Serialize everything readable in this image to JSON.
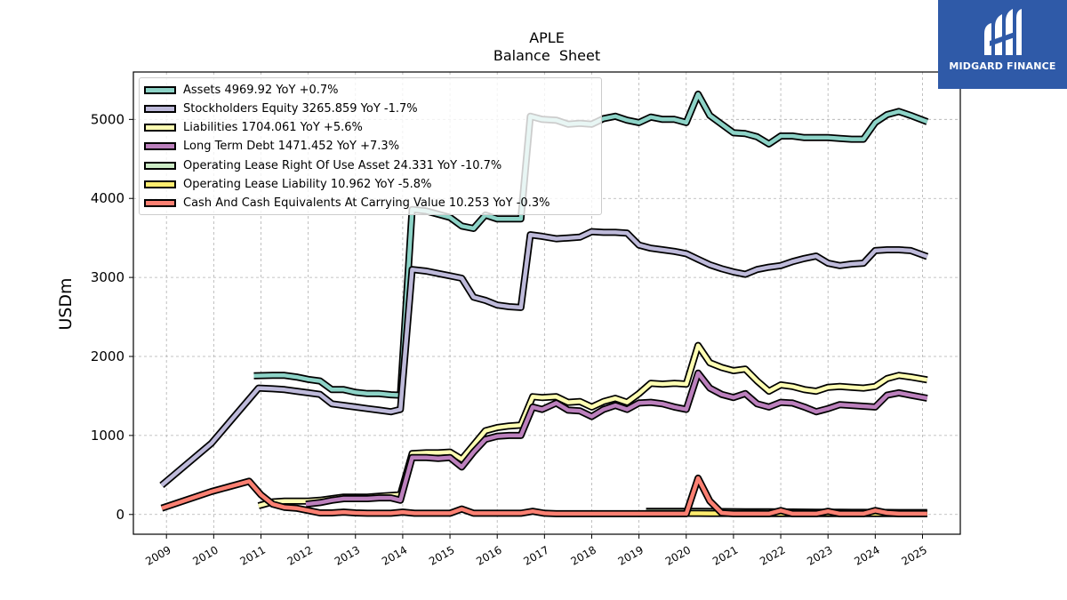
{
  "brand": {
    "name": "MIDGARD FINANCE",
    "logo_color": "#2f5aa8"
  },
  "chart_data": {
    "type": "line",
    "title": "APLE",
    "subtitle": "Balance  Sheet",
    "ylabel": "USDm",
    "xlabel": "",
    "ylim": [
      -250,
      5600
    ],
    "xlim": [
      2008.3,
      2025.8
    ],
    "yticks": [
      0,
      1000,
      2000,
      3000,
      4000,
      5000
    ],
    "xticks": [
      2009,
      2010,
      2011,
      2012,
      2013,
      2014,
      2015,
      2016,
      2017,
      2018,
      2019,
      2020,
      2021,
      2022,
      2023,
      2024,
      2025
    ],
    "grid": true,
    "legend_position": "upper-left",
    "series": [
      {
        "name": "Assets",
        "legend": "Assets  4969.92 YoY +0.7%",
        "color": "#8dd3c7",
        "x": [
          2010.85,
          2011.25,
          2011.5,
          2011.75,
          2012.0,
          2012.25,
          2012.5,
          2012.75,
          2013.0,
          2013.25,
          2013.5,
          2013.75,
          2013.95,
          2014.2,
          2014.5,
          2014.75,
          2015.0,
          2015.25,
          2015.5,
          2015.75,
          2016.0,
          2016.25,
          2016.5,
          2016.7,
          2016.95,
          2017.25,
          2017.5,
          2017.75,
          2018.0,
          2018.25,
          2018.5,
          2018.75,
          2019.0,
          2019.25,
          2019.5,
          2019.75,
          2020.0,
          2020.25,
          2020.5,
          2020.75,
          2021.0,
          2021.25,
          2021.5,
          2021.75,
          2022.0,
          2022.25,
          2022.5,
          2022.75,
          2023.0,
          2023.25,
          2023.5,
          2023.75,
          2024.0,
          2024.25,
          2024.5,
          2024.75,
          2025.1
        ],
        "y": [
          1755,
          1760,
          1760,
          1740,
          1710,
          1690,
          1580,
          1580,
          1545,
          1530,
          1530,
          1515,
          1510,
          3860,
          3840,
          3800,
          3760,
          3650,
          3620,
          3790,
          3740,
          3740,
          3740,
          5040,
          5000,
          4990,
          4940,
          4950,
          4940,
          5010,
          5040,
          4990,
          4960,
          5030,
          5000,
          5000,
          4960,
          5320,
          5050,
          4940,
          4830,
          4820,
          4780,
          4690,
          4790,
          4790,
          4770,
          4770,
          4770,
          4760,
          4750,
          4750,
          4960,
          5060,
          5100,
          5050,
          4970
        ]
      },
      {
        "name": "Stockholders Equity",
        "legend": "Stockholders Equity  3265.859 YoY -1.7%",
        "color": "#bebada",
        "x": [
          2008.9,
          2009.95,
          2010.95,
          2011.25,
          2011.5,
          2011.75,
          2012.0,
          2012.25,
          2012.5,
          2012.75,
          2013.0,
          2013.25,
          2013.5,
          2013.75,
          2013.95,
          2014.2,
          2014.5,
          2014.75,
          2015.0,
          2015.25,
          2015.5,
          2015.75,
          2016.0,
          2016.25,
          2016.5,
          2016.7,
          2016.95,
          2017.25,
          2017.5,
          2017.75,
          2018.0,
          2018.25,
          2018.5,
          2018.75,
          2019.0,
          2019.25,
          2019.5,
          2019.75,
          2020.0,
          2020.25,
          2020.5,
          2020.75,
          2021.0,
          2021.25,
          2021.5,
          2021.75,
          2022.0,
          2022.25,
          2022.5,
          2022.75,
          2023.0,
          2023.25,
          2023.5,
          2023.75,
          2024.0,
          2024.25,
          2024.5,
          2024.75,
          2025.1
        ],
        "y": [
          370,
          900,
          1600,
          1590,
          1580,
          1560,
          1540,
          1520,
          1400,
          1380,
          1360,
          1340,
          1320,
          1300,
          1330,
          3100,
          3080,
          3050,
          3020,
          2990,
          2750,
          2710,
          2650,
          2630,
          2620,
          3540,
          3520,
          3490,
          3500,
          3510,
          3580,
          3570,
          3570,
          3560,
          3410,
          3370,
          3350,
          3330,
          3300,
          3230,
          3160,
          3110,
          3070,
          3040,
          3100,
          3130,
          3150,
          3200,
          3240,
          3270,
          3180,
          3150,
          3170,
          3180,
          3340,
          3350,
          3350,
          3340,
          3265
        ]
      },
      {
        "name": "Liabilities",
        "legend": "Liabilities  1704.061 YoY +5.6%",
        "color": "#ffffb3",
        "x": [
          2010.95,
          2011.25,
          2011.5,
          2011.75,
          2012.0,
          2012.25,
          2012.5,
          2012.75,
          2013.0,
          2013.25,
          2013.5,
          2013.75,
          2013.95,
          2014.2,
          2014.5,
          2014.75,
          2015.0,
          2015.25,
          2015.5,
          2015.75,
          2016.0,
          2016.25,
          2016.5,
          2016.75,
          2016.95,
          2017.25,
          2017.5,
          2017.75,
          2018.0,
          2018.25,
          2018.5,
          2018.75,
          2019.0,
          2019.25,
          2019.5,
          2019.75,
          2020.0,
          2020.25,
          2020.5,
          2020.75,
          2021.0,
          2021.25,
          2021.5,
          2021.75,
          2022.0,
          2022.25,
          2022.5,
          2022.75,
          2023.0,
          2023.25,
          2023.5,
          2023.75,
          2024.0,
          2024.25,
          2024.5,
          2024.75,
          2025.1
        ],
        "y": [
          110,
          160,
          170,
          170,
          170,
          180,
          200,
          220,
          220,
          220,
          230,
          240,
          250,
          770,
          780,
          780,
          790,
          700,
          880,
          1060,
          1100,
          1120,
          1130,
          1490,
          1480,
          1490,
          1420,
          1430,
          1360,
          1430,
          1470,
          1420,
          1530,
          1660,
          1650,
          1660,
          1650,
          2140,
          1920,
          1860,
          1820,
          1840,
          1690,
          1560,
          1640,
          1620,
          1580,
          1560,
          1610,
          1620,
          1610,
          1600,
          1620,
          1720,
          1760,
          1740,
          1704
        ]
      },
      {
        "name": "Long Term Debt",
        "legend": "Long Term Debt  1471.452 YoY +7.3%",
        "color": "#bc80bd",
        "x": [
          2011.95,
          2012.25,
          2012.5,
          2012.75,
          2013.0,
          2013.25,
          2013.5,
          2013.75,
          2013.95,
          2014.2,
          2014.5,
          2014.75,
          2015.0,
          2015.25,
          2015.5,
          2015.75,
          2016.0,
          2016.25,
          2016.5,
          2016.75,
          2016.95,
          2017.25,
          2017.5,
          2017.75,
          2018.0,
          2018.25,
          2018.5,
          2018.75,
          2019.0,
          2019.25,
          2019.5,
          2019.75,
          2020.0,
          2020.25,
          2020.5,
          2020.75,
          2021.0,
          2021.25,
          2021.5,
          2021.75,
          2022.0,
          2022.25,
          2022.5,
          2022.75,
          2023.0,
          2023.25,
          2023.5,
          2023.75,
          2024.0,
          2024.25,
          2024.5,
          2024.75,
          2025.1
        ],
        "y": [
          130,
          150,
          180,
          200,
          200,
          200,
          210,
          210,
          180,
          720,
          720,
          710,
          720,
          600,
          790,
          950,
          990,
          1000,
          1000,
          1360,
          1330,
          1410,
          1320,
          1310,
          1240,
          1330,
          1380,
          1330,
          1410,
          1420,
          1400,
          1360,
          1330,
          1790,
          1600,
          1520,
          1480,
          1530,
          1400,
          1360,
          1420,
          1410,
          1360,
          1300,
          1340,
          1390,
          1380,
          1370,
          1360,
          1510,
          1540,
          1510,
          1471
        ]
      },
      {
        "name": "Operating Lease Right Of Use Asset",
        "legend": "Operating Lease Right Of Use Asset  24.331 YoY -10.7%",
        "color": "#ccebc5",
        "x": [
          2019.15,
          2019.5,
          2019.75,
          2020.0,
          2020.25,
          2020.5,
          2020.75,
          2021.0,
          2021.25,
          2021.5,
          2021.75,
          2022.0,
          2022.25,
          2022.5,
          2022.75,
          2023.0,
          2023.25,
          2023.5,
          2023.75,
          2024.0,
          2024.25,
          2024.5,
          2024.75,
          2025.1
        ],
        "y": [
          40,
          40,
          40,
          40,
          40,
          38,
          37,
          36,
          35,
          34,
          33,
          32,
          31,
          30,
          29,
          29,
          28,
          27,
          27,
          26,
          26,
          25,
          25,
          24
        ]
      },
      {
        "name": "Operating Lease Liability",
        "legend": "Operating Lease Liability  10.962 YoY -5.8%",
        "color": "#ffed6f",
        "x": [
          2019.15,
          2019.5,
          2019.75,
          2020.0,
          2020.25,
          2020.5,
          2020.75,
          2021.0,
          2021.25,
          2021.5,
          2021.75,
          2022.0,
          2022.25,
          2022.5,
          2022.75,
          2023.0,
          2023.25,
          2023.5,
          2023.75,
          2024.0,
          2024.25,
          2024.5,
          2024.75,
          2025.1
        ],
        "y": [
          14,
          14,
          14,
          14,
          14,
          13,
          13,
          13,
          13,
          13,
          12,
          12,
          12,
          12,
          12,
          12,
          11,
          11,
          11,
          11,
          11,
          11,
          11,
          11
        ]
      },
      {
        "name": "Cash And Cash Equivalents At Carrying Value",
        "legend": "Cash And Cash Equivalents At Carrying Value  10.253 YoY -0.3%",
        "color": "#fb8072",
        "x": [
          2008.9,
          2009.95,
          2010.75,
          2011.0,
          2011.25,
          2011.5,
          2011.75,
          2012.0,
          2012.25,
          2012.5,
          2012.75,
          2013.0,
          2013.25,
          2013.5,
          2013.75,
          2014.0,
          2014.25,
          2014.5,
          2014.75,
          2015.0,
          2015.25,
          2015.5,
          2015.75,
          2016.0,
          2016.25,
          2016.5,
          2016.75,
          2017.0,
          2017.25,
          2017.5,
          2017.75,
          2018.0,
          2018.25,
          2018.5,
          2018.75,
          2019.0,
          2019.25,
          2019.5,
          2019.75,
          2020.0,
          2020.25,
          2020.5,
          2020.75,
          2021.0,
          2021.25,
          2021.5,
          2021.75,
          2022.0,
          2022.25,
          2022.5,
          2022.75,
          2023.0,
          2023.25,
          2023.5,
          2023.75,
          2024.0,
          2024.25,
          2024.5,
          2024.75,
          2025.1
        ],
        "y": [
          80,
          290,
          420,
          250,
          130,
          90,
          80,
          50,
          20,
          20,
          30,
          20,
          15,
          15,
          15,
          30,
          15,
          15,
          15,
          15,
          70,
          15,
          15,
          15,
          15,
          15,
          40,
          15,
          10,
          10,
          10,
          10,
          10,
          10,
          10,
          10,
          10,
          10,
          10,
          10,
          460,
          170,
          20,
          10,
          10,
          10,
          10,
          50,
          10,
          10,
          10,
          40,
          10,
          10,
          10,
          50,
          20,
          10,
          10,
          10
        ]
      }
    ]
  }
}
